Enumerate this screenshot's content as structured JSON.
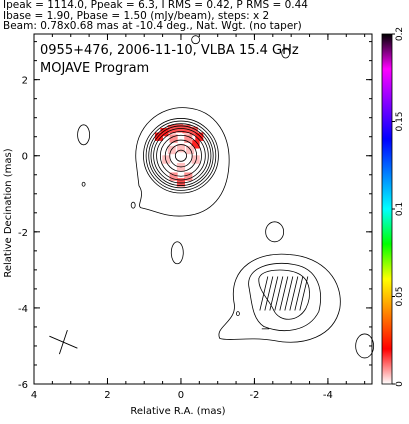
{
  "header": {
    "line1": "Ipeak = 1114.0, Ppeak = 6.3, I RMS = 0.42, P RMS = 0.44",
    "line2": "Ibase = 1.90, Pbase = 1.50 (mJy/beam), steps: x 2",
    "line3": "Beam: 0.78x0.68 mas at -10.4 deg., Nat. Wgt. (no taper)"
  },
  "map": {
    "title_line1": "0955+476, 2006-11-10, VLBA 15.4 GHz",
    "title_line2": "MOJAVE Program"
  },
  "chart_data": {
    "type": "heatmap",
    "xlabel": "Relative R.A. (mas)",
    "ylabel": "Relative Decination (mas)",
    "xlim": [
      4,
      -5.2
    ],
    "ylim": [
      -6,
      3.2
    ],
    "x_ticks": [
      4,
      2,
      0,
      -2,
      -4
    ],
    "y_ticks": [
      2,
      0,
      -2,
      -4,
      -6
    ],
    "colorbar": {
      "ticks": [
        0,
        0.05,
        0.1,
        0.15,
        0.2
      ],
      "range": [
        0,
        0.2
      ],
      "colors": [
        "#ffffff",
        "#ff0000",
        "#ff8000",
        "#ffff00",
        "#00ff00",
        "#00ffff",
        "#0080ff",
        "#0000ff",
        "#8000ff",
        "#ff00ff",
        "#000000"
      ]
    },
    "core": {
      "x": 0.0,
      "y": 0.0
    },
    "core_contour_radii_mas": [
      0.15,
      0.3,
      0.42,
      0.55,
      0.65,
      0.73,
      0.8,
      0.86,
      0.93,
      1.0
    ],
    "polarization_pixels": [
      {
        "x": -0.35,
        "y": 0.65,
        "v": 0.005
      },
      {
        "x": -0.15,
        "y": 0.7,
        "v": 0.004
      },
      {
        "x": 0.05,
        "y": 0.72,
        "v": 0.004
      },
      {
        "x": 0.25,
        "y": 0.7,
        "v": 0.005
      },
      {
        "x": 0.45,
        "y": 0.62,
        "v": 0.007
      },
      {
        "x": 0.6,
        "y": 0.5,
        "v": 0.009
      },
      {
        "x": -0.5,
        "y": 0.5,
        "v": 0.008
      },
      {
        "x": -0.4,
        "y": 0.3,
        "v": 0.006
      },
      {
        "x": 0.2,
        "y": 0.45,
        "v": 0.003
      },
      {
        "x": -0.2,
        "y": 0.45,
        "v": 0.003
      },
      {
        "x": 0.4,
        "y": -0.1,
        "v": 0.002
      },
      {
        "x": -0.4,
        "y": -0.1,
        "v": 0.002
      },
      {
        "x": 0.2,
        "y": -0.55,
        "v": 0.003
      },
      {
        "x": -0.2,
        "y": -0.55,
        "v": 0.003
      },
      {
        "x": 0.0,
        "y": -0.7,
        "v": 0.004
      },
      {
        "x": 0.0,
        "y": 0.2,
        "v": 0.001
      },
      {
        "x": 0.25,
        "y": 0.15,
        "v": 0.002
      },
      {
        "x": -0.25,
        "y": 0.15,
        "v": 0.002
      },
      {
        "x": 0.0,
        "y": -0.3,
        "v": 0.002
      }
    ],
    "beam": {
      "major_mas": 0.78,
      "minor_mas": 0.68,
      "pa_deg": -10.4
    }
  }
}
